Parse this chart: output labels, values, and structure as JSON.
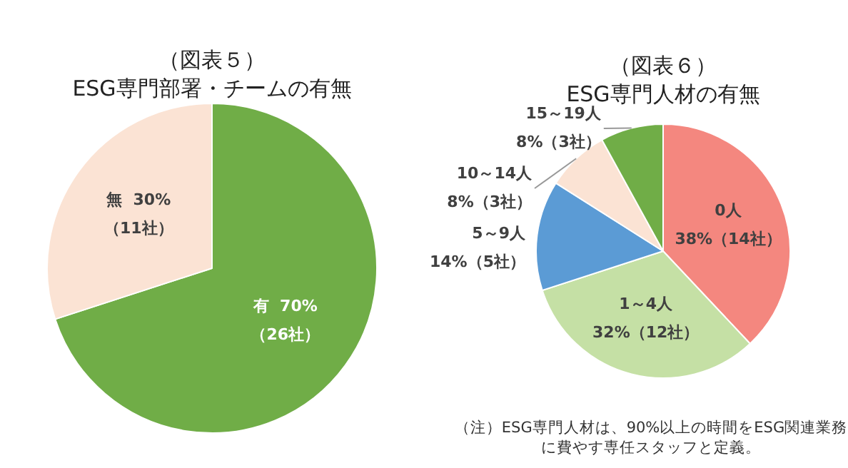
{
  "chart_data": [
    {
      "type": "pie",
      "title": "（図表５）",
      "subtitle": "ESG専門部署・チームの有無",
      "categories": [
        "有",
        "無"
      ],
      "values": [
        70,
        30
      ],
      "colors": [
        "#70ad47",
        "#fbe3d4"
      ],
      "value_labels": [
        "70%\n（26社）",
        "30%\n（11社）"
      ]
    },
    {
      "type": "pie",
      "title": "（図表６）",
      "subtitle": "ESG専門人材の有無",
      "categories": [
        "0人",
        "1～4人",
        "5～9人",
        "10～14人",
        "15～19人"
      ],
      "values": [
        38,
        32,
        14,
        8,
        8
      ],
      "colors": [
        "#f4877f",
        "#c5e0a5",
        "#5b9bd5",
        "#fbe3d4",
        "#70ad47"
      ],
      "value_labels": [
        "\n38%（14社）",
        "\n32%（12社）",
        "\n14%（5社）",
        "\n8%（3社）",
        "\n8%（3社）"
      ],
      "annotations": [
        "（注）ESG専門人材は、90%以上の時間をESG関連業務に費やす専任スタッフと定義。"
      ]
    }
  ]
}
